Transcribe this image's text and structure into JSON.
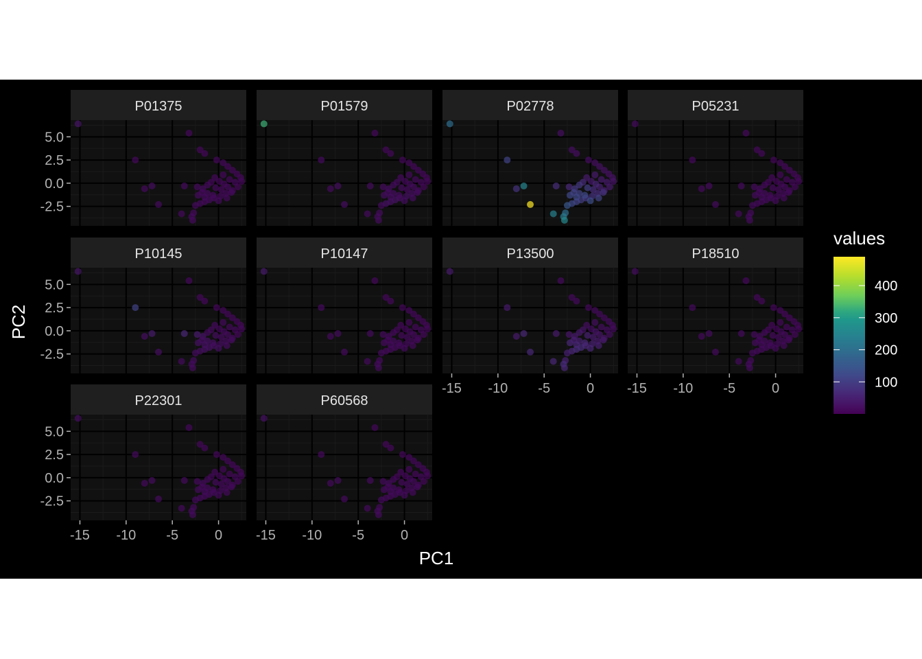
{
  "chart_data": {
    "type": "scatter",
    "facet_by": "protein",
    "facets": [
      "P01375",
      "P01579",
      "P02778",
      "P05231",
      "P10145",
      "P10147",
      "P13500",
      "P18510",
      "P22301",
      "P60568"
    ],
    "xlabel": "PC1",
    "ylabel": "PC2",
    "xlim": [
      -16,
      3
    ],
    "ylim": [
      -4.6,
      6.8
    ],
    "x_ticks": [
      -15,
      -10,
      -5,
      0
    ],
    "x_tick_labels": [
      "-15",
      "-10",
      "-5",
      "0"
    ],
    "y_ticks": [
      -2.5,
      0,
      2.5,
      5
    ],
    "y_tick_labels": [
      "-2.5",
      "0.0",
      "2.5",
      "5.0"
    ],
    "grid": true,
    "legend": {
      "title": "values",
      "position": "right",
      "type": "colorbar",
      "palette": "viridis",
      "range": [
        0,
        490
      ],
      "breaks": [
        100,
        200,
        300,
        400
      ],
      "break_labels": [
        "100",
        "200",
        "300",
        "400"
      ]
    },
    "points_xy": [
      [
        -15.2,
        6.4
      ],
      [
        -3.2,
        5.4
      ],
      [
        -9.0,
        2.5
      ],
      [
        -2.0,
        3.6
      ],
      [
        -1.5,
        3.2
      ],
      [
        -0.2,
        2.5
      ],
      [
        0.5,
        2.2
      ],
      [
        1.0,
        1.8
      ],
      [
        1.5,
        1.4
      ],
      [
        2.0,
        1.0
      ],
      [
        2.4,
        0.6
      ],
      [
        2.5,
        0.2
      ],
      [
        2.1,
        -0.4
      ],
      [
        1.5,
        -0.8
      ],
      [
        0.8,
        -1.1
      ],
      [
        0.2,
        -1.4
      ],
      [
        -0.5,
        -1.6
      ],
      [
        -1.0,
        -1.8
      ],
      [
        -1.5,
        -2.0
      ],
      [
        -2.0,
        -2.2
      ],
      [
        -2.7,
        -3.2
      ],
      [
        -2.9,
        -3.6
      ],
      [
        -2.8,
        -4.0
      ],
      [
        -4.0,
        -3.3
      ],
      [
        -3.7,
        -0.3
      ],
      [
        -2.3,
        -0.4
      ],
      [
        -6.5,
        -2.3
      ],
      [
        -8.0,
        -0.6
      ],
      [
        -7.2,
        -0.3
      ],
      [
        -1.7,
        -0.6
      ],
      [
        -1.2,
        -1.1
      ],
      [
        -0.6,
        -1.3
      ],
      [
        0.3,
        -0.7
      ],
      [
        1.0,
        -0.4
      ],
      [
        1.8,
        0.1
      ],
      [
        0.1,
        0.2
      ],
      [
        -0.8,
        0.1
      ],
      [
        -1.2,
        -0.2
      ],
      [
        -0.3,
        -0.5
      ],
      [
        0.6,
        -0.1
      ],
      [
        1.2,
        0.4
      ],
      [
        -1.5,
        -1.5
      ],
      [
        -2.2,
        -1.3
      ],
      [
        -1.8,
        -1.0
      ],
      [
        0.0,
        -1.9
      ],
      [
        0.9,
        -1.6
      ],
      [
        1.4,
        -1.0
      ],
      [
        -0.4,
        0.6
      ],
      [
        0.5,
        0.9
      ],
      [
        -2.5,
        -2.4
      ]
    ],
    "values_by_facet": {
      "P01375": [
        30,
        10,
        12,
        10,
        10,
        10,
        10,
        10,
        10,
        10,
        10,
        10,
        10,
        10,
        12,
        12,
        14,
        14,
        12,
        12,
        12,
        15,
        14,
        12,
        14,
        12,
        14,
        12,
        18,
        14,
        14,
        12,
        12,
        12,
        12,
        10,
        10,
        12,
        12,
        12,
        10,
        14,
        14,
        12,
        14,
        12,
        12,
        10,
        10,
        14
      ],
      "P01579": [
        330,
        10,
        14,
        10,
        10,
        10,
        10,
        10,
        10,
        10,
        10,
        10,
        10,
        18,
        20,
        22,
        24,
        26,
        24,
        22,
        14,
        16,
        16,
        14,
        16,
        14,
        18,
        14,
        20,
        18,
        18,
        16,
        14,
        14,
        12,
        12,
        14,
        16,
        18,
        14,
        12,
        20,
        20,
        18,
        20,
        18,
        16,
        12,
        12,
        16
      ],
      "P02778": [
        200,
        20,
        110,
        20,
        20,
        20,
        20,
        22,
        22,
        24,
        26,
        30,
        40,
        50,
        70,
        80,
        90,
        100,
        110,
        120,
        200,
        230,
        260,
        240,
        70,
        60,
        490,
        80,
        250,
        90,
        110,
        120,
        70,
        50,
        40,
        40,
        70,
        90,
        100,
        60,
        40,
        120,
        120,
        110,
        130,
        110,
        80,
        40,
        40,
        150
      ],
      "P05231": [
        14,
        10,
        12,
        10,
        10,
        10,
        10,
        10,
        10,
        10,
        10,
        10,
        10,
        12,
        12,
        12,
        14,
        14,
        12,
        12,
        12,
        14,
        14,
        12,
        14,
        12,
        14,
        12,
        14,
        14,
        14,
        12,
        12,
        12,
        12,
        10,
        10,
        12,
        12,
        12,
        10,
        14,
        14,
        12,
        14,
        12,
        12,
        10,
        10,
        14
      ],
      "P10145": [
        30,
        10,
        110,
        10,
        10,
        10,
        10,
        10,
        10,
        10,
        10,
        10,
        10,
        14,
        16,
        18,
        20,
        24,
        22,
        20,
        16,
        18,
        16,
        14,
        60,
        40,
        20,
        20,
        40,
        30,
        24,
        20,
        16,
        14,
        12,
        12,
        14,
        16,
        18,
        14,
        12,
        22,
        22,
        20,
        22,
        18,
        16,
        12,
        12,
        18
      ],
      "P10147": [
        40,
        10,
        14,
        10,
        10,
        10,
        10,
        10,
        10,
        10,
        10,
        10,
        10,
        12,
        12,
        12,
        14,
        14,
        12,
        12,
        12,
        14,
        14,
        12,
        14,
        12,
        14,
        12,
        16,
        14,
        14,
        12,
        12,
        12,
        12,
        10,
        10,
        12,
        12,
        12,
        10,
        14,
        14,
        12,
        14,
        12,
        12,
        10,
        10,
        14
      ],
      "P13500": [
        40,
        12,
        40,
        12,
        12,
        12,
        12,
        12,
        12,
        14,
        14,
        16,
        20,
        30,
        40,
        50,
        60,
        70,
        70,
        60,
        50,
        70,
        60,
        60,
        40,
        30,
        60,
        40,
        60,
        40,
        50,
        60,
        40,
        30,
        20,
        20,
        30,
        40,
        50,
        30,
        20,
        60,
        60,
        50,
        60,
        50,
        40,
        20,
        20,
        50
      ],
      "P18510": [
        18,
        10,
        14,
        10,
        10,
        10,
        10,
        10,
        10,
        10,
        10,
        10,
        10,
        12,
        12,
        12,
        14,
        14,
        12,
        12,
        12,
        14,
        14,
        12,
        14,
        12,
        14,
        12,
        16,
        14,
        14,
        12,
        12,
        12,
        12,
        10,
        10,
        12,
        12,
        12,
        10,
        14,
        14,
        12,
        14,
        12,
        12,
        10,
        10,
        14
      ],
      "P22301": [
        20,
        10,
        12,
        10,
        10,
        10,
        10,
        10,
        10,
        10,
        10,
        10,
        10,
        12,
        12,
        12,
        14,
        14,
        12,
        12,
        12,
        14,
        14,
        12,
        14,
        12,
        14,
        12,
        16,
        14,
        14,
        12,
        12,
        12,
        12,
        10,
        10,
        12,
        12,
        12,
        10,
        14,
        14,
        12,
        14,
        12,
        12,
        10,
        10,
        14
      ],
      "P60568": [
        24,
        10,
        12,
        10,
        10,
        10,
        10,
        10,
        10,
        10,
        10,
        10,
        10,
        12,
        12,
        12,
        14,
        14,
        12,
        12,
        12,
        14,
        14,
        12,
        14,
        12,
        14,
        12,
        16,
        14,
        14,
        12,
        12,
        12,
        12,
        10,
        10,
        12,
        12,
        12,
        10,
        14,
        14,
        12,
        14,
        12,
        12,
        10,
        10,
        14
      ]
    }
  },
  "colors": {
    "page_background": "#000000",
    "panel_background": "#111111",
    "strip_background": "#1f1f1f",
    "grid_major": "#000000",
    "grid_minor": "#1b1b1b",
    "point_alpha": 0.7
  }
}
